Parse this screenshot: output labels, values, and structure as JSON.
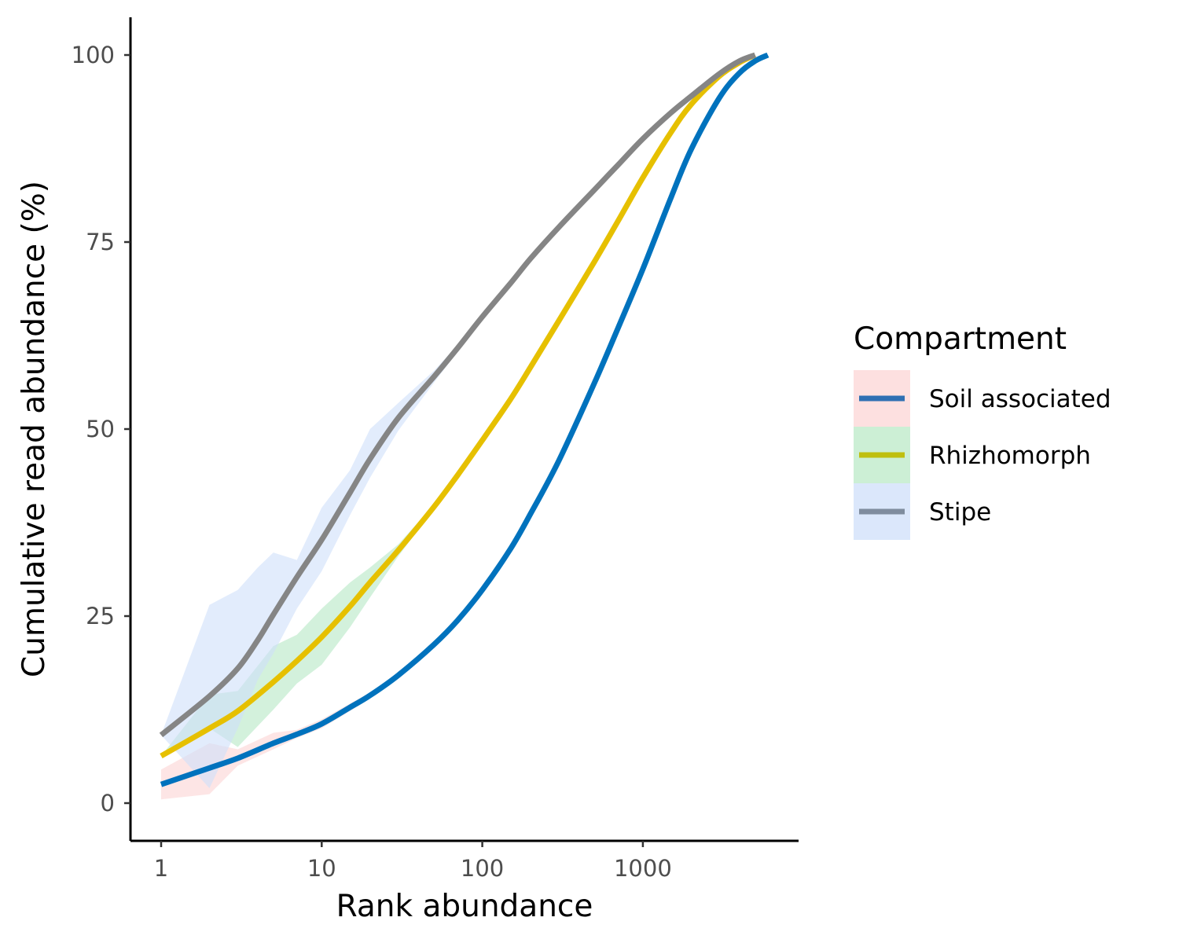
{
  "chart_data": {
    "type": "line",
    "xlabel": "Rank abundance",
    "ylabel": "Cumulative read abundance (%)",
    "x_scale": "log10",
    "xlim": [
      0.83,
      6500
    ],
    "ylim": [
      -5,
      105
    ],
    "x_ticks": [
      1,
      10,
      100,
      1000
    ],
    "x_tick_labels": [
      "1",
      "10",
      "100",
      "1000"
    ],
    "y_ticks": [
      0,
      25,
      50,
      75,
      100
    ],
    "y_tick_labels": [
      "0",
      "25",
      "50",
      "75",
      "100"
    ],
    "grid": false,
    "legend": {
      "title": "Compartment",
      "placement": "right",
      "entries": [
        {
          "label": "Soil associated",
          "key_line": "#2f70b3",
          "key_fill": "#fde0e0"
        },
        {
          "label": "Rhizhomorph",
          "key_line": "#bfbf0f",
          "key_fill": "#ccefd5"
        },
        {
          "label": "Stipe",
          "key_line": "#7f8c9e",
          "key_fill": "#dbe7fb"
        }
      ]
    },
    "series": [
      {
        "name": "Soil associated",
        "color": "#0072bd",
        "band_color": "#fcd3d3",
        "x": [
          1,
          2,
          3,
          5,
          7,
          10,
          15,
          20,
          30,
          50,
          70,
          100,
          150,
          200,
          300,
          500,
          700,
          1000,
          1500,
          2000,
          3000,
          4000,
          5000,
          6000
        ],
        "y": [
          2.5,
          4.7,
          6,
          8,
          9.2,
          10.6,
          12.8,
          14.4,
          17.1,
          21.2,
          24.4,
          28.5,
          34,
          38.7,
          45.8,
          56.2,
          63.5,
          71.4,
          81,
          87.4,
          94.3,
          97.6,
          99.2,
          100
        ],
        "band_lower": [
          0.5,
          1.2,
          5,
          7.2,
          8.7,
          10,
          12.3,
          14,
          16.8,
          21,
          24.2,
          28.3,
          33.8,
          38.5,
          45.6,
          56,
          63.3,
          71.2,
          80.8,
          87.2,
          94.1,
          97.4,
          99,
          100
        ],
        "band_upper": [
          4.5,
          8,
          7.2,
          9.4,
          9.8,
          11.2,
          13.3,
          14.8,
          17.4,
          21.4,
          24.6,
          28.7,
          34.2,
          38.9,
          46,
          56.4,
          63.7,
          71.6,
          81.2,
          87.6,
          94.5,
          97.8,
          99.4,
          100
        ]
      },
      {
        "name": "Rhizhomorph",
        "color": "#e6c000",
        "band_color": "#b5e8c4",
        "x": [
          1,
          2,
          3,
          5,
          7,
          10,
          15,
          20,
          30,
          50,
          70,
          100,
          150,
          200,
          300,
          500,
          700,
          1000,
          1500,
          2000,
          3000,
          4000,
          5000
        ],
        "y": [
          6.3,
          10,
          12.3,
          16.2,
          19,
          22.2,
          26.3,
          29.5,
          33.8,
          39.6,
          43.8,
          48.5,
          54,
          58.3,
          64.5,
          72.4,
          77.8,
          83.6,
          89.7,
          93.4,
          97.2,
          99,
          100
        ],
        "band_lower": [
          6.3,
          10,
          7.5,
          12.5,
          16,
          18.5,
          23.5,
          27.5,
          33,
          39.3,
          43.6,
          48.3,
          53.8,
          58.1,
          64.3,
          72.2,
          77.6,
          83.4,
          89.5,
          93.2,
          97,
          98.8,
          100
        ],
        "band_upper": [
          6.3,
          14.5,
          15,
          21,
          22.5,
          26,
          29.5,
          31.5,
          34.6,
          39.9,
          44,
          48.7,
          54.2,
          58.5,
          64.7,
          72.6,
          78,
          83.8,
          89.9,
          93.6,
          97.4,
          99.2,
          100
        ]
      },
      {
        "name": "Stipe",
        "color": "#858585",
        "band_color": "#cfe0fa",
        "x": [
          1,
          2,
          3,
          4,
          5,
          7,
          10,
          15,
          20,
          30,
          50,
          70,
          100,
          150,
          200,
          300,
          500,
          700,
          1000,
          1500,
          2000,
          3000,
          4000,
          5000
        ],
        "y": [
          9.1,
          14.3,
          18,
          21.8,
          25.2,
          30.2,
          35.2,
          41.5,
          46,
          51.5,
          57,
          60.8,
          65,
          69.5,
          72.8,
          77,
          82,
          85.3,
          88.8,
          92.3,
          94.5,
          97.5,
          99.2,
          100
        ],
        "band_lower": [
          9.1,
          2,
          10,
          16.5,
          20,
          26,
          31,
          38.5,
          43.5,
          49.8,
          56.2,
          60.3,
          64.7,
          69.3,
          72.6,
          76.8,
          81.8,
          85.1,
          88.6,
          92.1,
          94.3,
          97.3,
          99,
          100
        ],
        "band_upper": [
          9.1,
          26.5,
          28.5,
          31.5,
          33.5,
          32.5,
          39.5,
          44.5,
          50,
          53.5,
          57.8,
          61.2,
          65.3,
          69.7,
          73,
          77.2,
          82.2,
          85.5,
          89,
          92.5,
          94.7,
          97.7,
          99.4,
          100
        ]
      }
    ]
  }
}
